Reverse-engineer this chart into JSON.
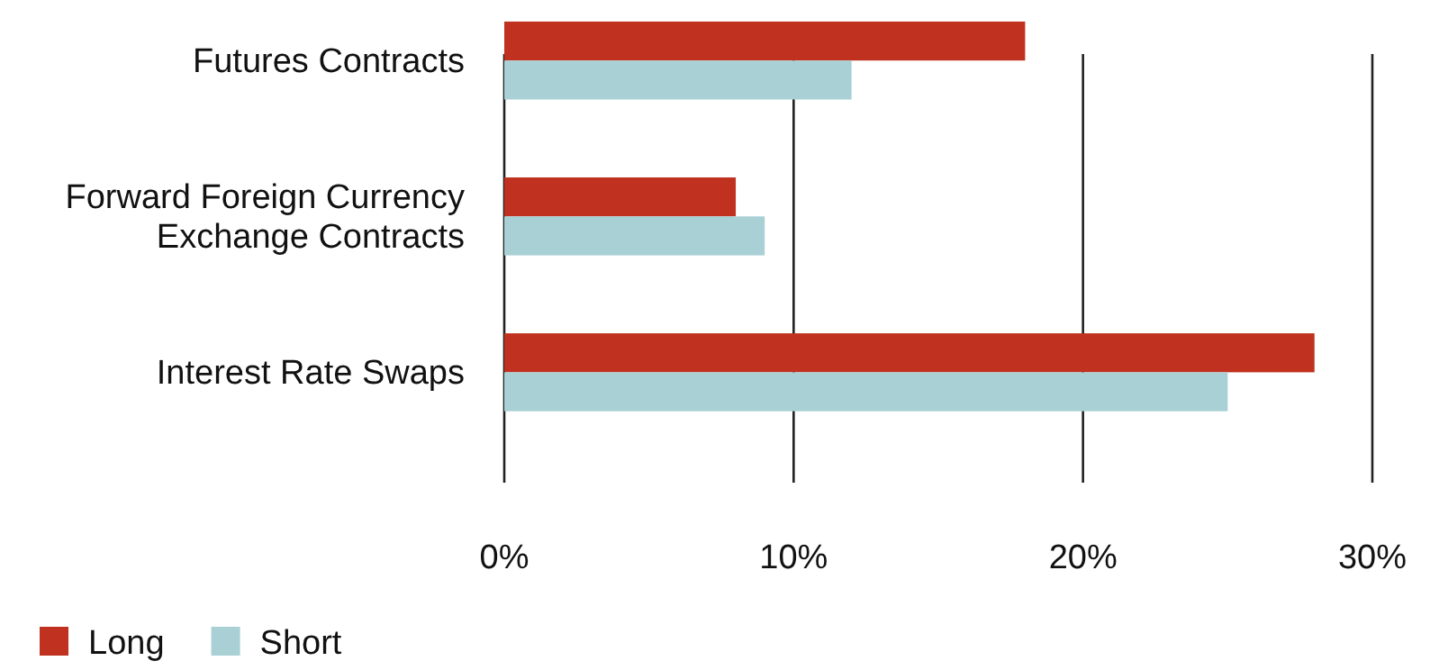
{
  "chart_data": {
    "type": "bar",
    "orientation": "horizontal",
    "categories": [
      "Futures Contracts",
      "Forward Foreign Currency\nExchange Contracts",
      "Interest Rate Swaps"
    ],
    "series": [
      {
        "name": "Long",
        "color": "#c0311f",
        "values": [
          18,
          8,
          28
        ]
      },
      {
        "name": "Short",
        "color": "#a8d0d5",
        "values": [
          12,
          9,
          25
        ]
      }
    ],
    "xlim": [
      0,
      30
    ],
    "xticks": [
      {
        "value": 0,
        "label": "0%"
      },
      {
        "value": 10,
        "label": "10%"
      },
      {
        "value": 20,
        "label": "20%"
      },
      {
        "value": 30,
        "label": "30%"
      }
    ],
    "grid": "x",
    "legend": "bottom left"
  }
}
